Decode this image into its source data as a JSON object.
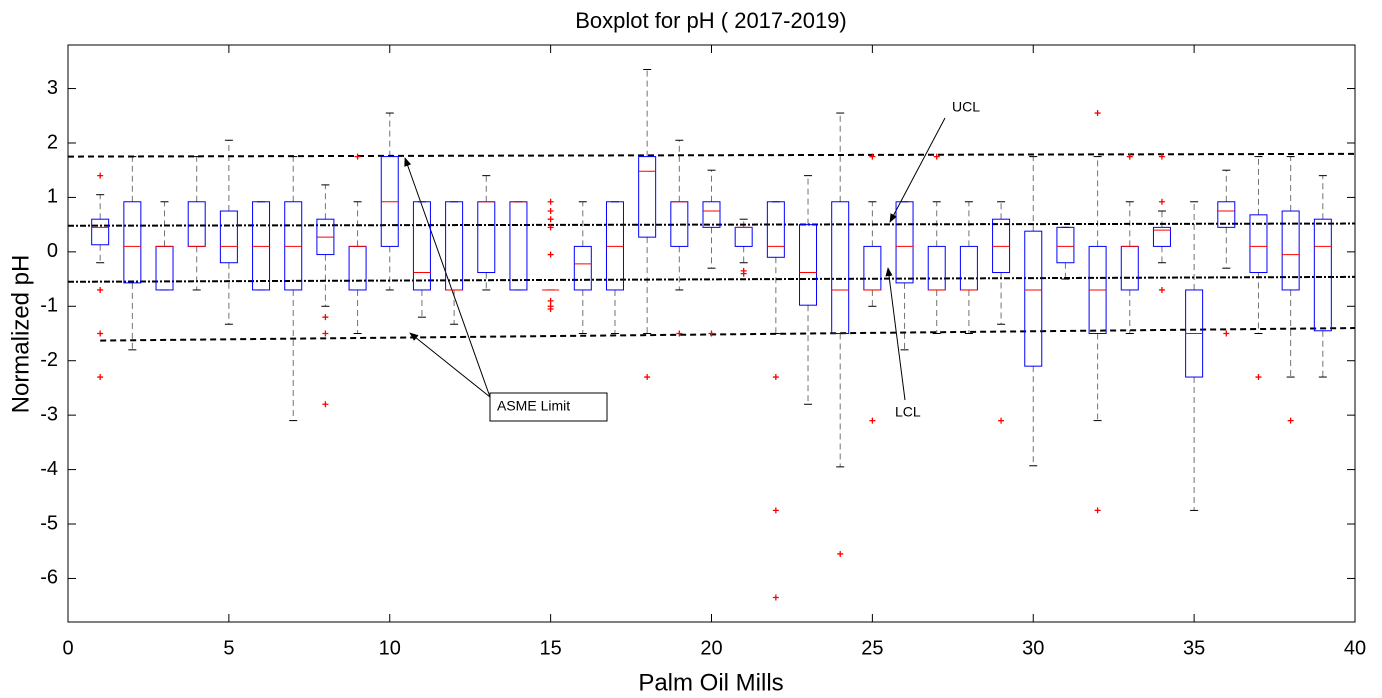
{
  "chart_data": {
    "type": "boxplot",
    "title": "Boxplot for pH ( 2017-2019)",
    "x_label": "Palm Oil Mills",
    "y_label": "Normalized pH",
    "xlim": [
      0,
      40
    ],
    "ylim": [
      -6.8,
      3.8
    ],
    "xticks": [
      0,
      5,
      10,
      15,
      20,
      25,
      30,
      35,
      40
    ],
    "yticks": [
      -6,
      -5,
      -4,
      -3,
      -2,
      -1,
      0,
      1,
      2,
      3
    ],
    "box_color": "#0000ff",
    "median_color": "#ff0000",
    "whisker_color": "#000000",
    "outlier_color": "#ff0000",
    "x": [
      1,
      2,
      3,
      4,
      5,
      6,
      7,
      8,
      9,
      10,
      11,
      12,
      13,
      14,
      15,
      16,
      17,
      18,
      19,
      20,
      21,
      22,
      23,
      24,
      25,
      26,
      27,
      28,
      29,
      30,
      31,
      32,
      33,
      34,
      35,
      36,
      37,
      38,
      39
    ],
    "whisker_low": [
      -0.2,
      -1.8,
      -0.7,
      -0.7,
      -1.33,
      -0.7,
      -3.1,
      -1.0,
      -1.5,
      -0.7,
      -1.2,
      -1.33,
      -0.7,
      -0.7,
      -0.7,
      -1.5,
      -1.5,
      -1.5,
      -0.7,
      -0.3,
      -0.2,
      -1.5,
      -2.8,
      -3.95,
      -1.0,
      -1.8,
      -1.5,
      -1.5,
      -1.33,
      -3.93,
      -0.5,
      -3.1,
      -1.5,
      -0.2,
      -4.75,
      -0.3,
      -1.5,
      -2.3,
      -2.3
    ],
    "q1": [
      0.13,
      -0.57,
      -0.7,
      0.1,
      -0.2,
      -0.7,
      -0.7,
      -0.05,
      -0.7,
      0.1,
      -0.7,
      -0.7,
      -0.38,
      -0.7,
      -0.7,
      -0.7,
      -0.7,
      0.27,
      0.1,
      0.45,
      0.1,
      -0.1,
      -0.98,
      -1.5,
      -0.7,
      -0.57,
      -0.7,
      -0.7,
      -0.38,
      -2.1,
      -0.2,
      -1.5,
      -0.7,
      0.1,
      -2.3,
      0.45,
      -0.38,
      -0.7,
      -1.45
    ],
    "median": [
      0.45,
      0.1,
      0.1,
      0.1,
      0.1,
      0.1,
      0.1,
      0.27,
      0.1,
      0.92,
      -0.38,
      -0.7,
      0.92,
      0.92,
      -0.7,
      -0.22,
      0.1,
      1.48,
      0.92,
      0.75,
      0.45,
      0.1,
      -0.38,
      -0.7,
      -0.7,
      0.1,
      -0.7,
      -0.7,
      0.1,
      -0.7,
      0.1,
      -0.7,
      0.1,
      0.4,
      -1.5,
      0.75,
      0.1,
      -0.05,
      0.1
    ],
    "q3": [
      0.6,
      0.92,
      0.1,
      0.92,
      0.75,
      0.92,
      0.92,
      0.6,
      0.1,
      1.75,
      0.92,
      0.92,
      0.92,
      0.92,
      -0.7,
      0.1,
      0.92,
      1.75,
      0.92,
      0.92,
      0.45,
      0.92,
      0.5,
      0.92,
      0.1,
      0.92,
      0.1,
      0.1,
      0.6,
      0.38,
      0.45,
      0.1,
      0.1,
      0.45,
      -0.7,
      0.92,
      0.68,
      0.75,
      0.6
    ],
    "whisker_high": [
      1.05,
      1.75,
      0.92,
      1.75,
      2.05,
      0.92,
      1.75,
      1.23,
      0.92,
      2.55,
      0.92,
      0.92,
      1.4,
      0.92,
      -0.7,
      0.92,
      0.92,
      3.35,
      2.05,
      1.5,
      0.6,
      0.92,
      1.4,
      2.55,
      0.92,
      0.92,
      0.92,
      0.92,
      0.92,
      1.75,
      0.45,
      1.75,
      0.92,
      0.75,
      0.92,
      1.5,
      1.75,
      1.75,
      1.4
    ],
    "outliers": [
      [
        1.4,
        -0.7,
        -1.5,
        -2.3
      ],
      [],
      [],
      [],
      [],
      [],
      [],
      [
        -1.2,
        -1.5,
        -2.8
      ],
      [
        1.75
      ],
      [],
      [],
      [],
      [],
      [],
      [
        0.92,
        0.75,
        0.6,
        0.45,
        -0.05,
        -0.9,
        -1.0,
        -1.05
      ],
      [],
      [],
      [
        -2.3
      ],
      [
        -1.5
      ],
      [
        -1.5
      ],
      [
        -0.35,
        -0.4
      ],
      [
        -2.3,
        -4.75,
        -6.35
      ],
      [],
      [
        -5.55
      ],
      [
        1.75,
        -3.1
      ],
      [],
      [
        1.75
      ],
      [],
      [
        -3.1
      ],
      [],
      [],
      [
        2.55,
        -4.75
      ],
      [
        1.75
      ],
      [
        1.75,
        0.92,
        -0.7
      ],
      [],
      [
        -1.5
      ],
      [
        -2.3
      ],
      [
        -3.1
      ],
      []
    ],
    "reference_lines": [
      {
        "label": "UCL",
        "x": [
          0,
          40
        ],
        "values": [
          0.48,
          0.52
        ],
        "style": "dashdot"
      },
      {
        "label": "LCL",
        "x": [
          0,
          40
        ],
        "values": [
          -0.55,
          -0.46
        ],
        "style": "dashdot"
      },
      {
        "label": "ASME Limit",
        "x": [
          0,
          40
        ],
        "values": [
          1.75,
          1.8
        ],
        "style": "dashed"
      },
      {
        "label": "ASME Limit",
        "x": [
          1,
          40
        ],
        "values": [
          -1.63,
          -1.4
        ],
        "style": "dashed"
      }
    ]
  }
}
